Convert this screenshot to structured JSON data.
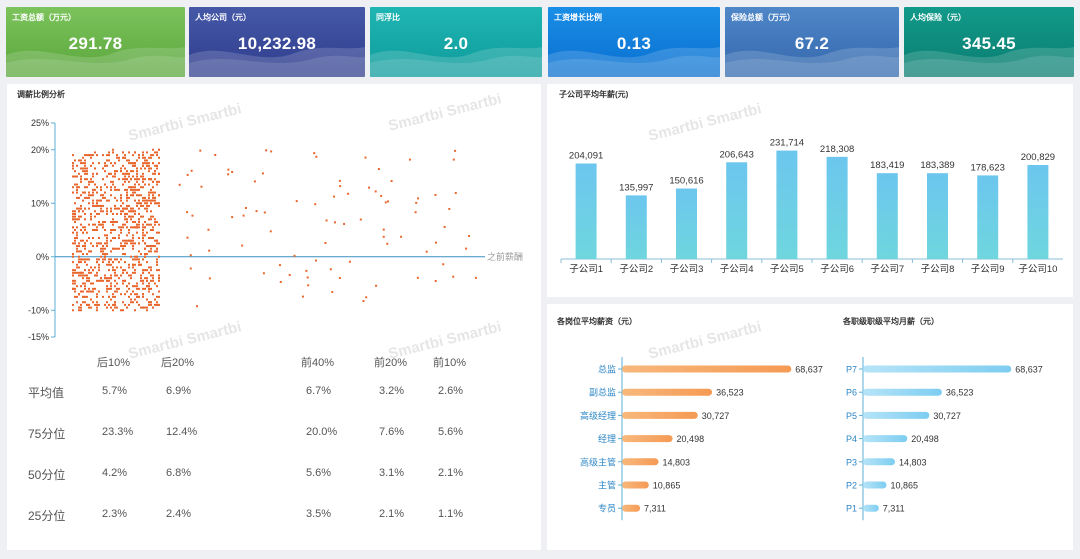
{
  "kpis": [
    {
      "label": "工资总额（万元）",
      "value": "291.78",
      "c1": "#7cc35c",
      "c2": "#5aa63c"
    },
    {
      "label": "人均公司（元）",
      "value": "10,232.98",
      "c1": "#4558a8",
      "c2": "#2f3d8c"
    },
    {
      "label": "同浮比",
      "value": "2.0",
      "c1": "#1fb6b3",
      "c2": "#0e9a9a"
    },
    {
      "label": "工资增长比例",
      "value": "0.13",
      "c1": "#1a8ee6",
      "c2": "#0a6fd0"
    },
    {
      "label": "保险总额（万元）",
      "value": "67.2",
      "c1": "#4f87c9",
      "c2": "#3468ac"
    },
    {
      "label": "人均保险（元）",
      "value": "345.45",
      "c1": "#129a8a",
      "c2": "#0a7d70"
    }
  ],
  "watermark": "Smartbi Smartbi",
  "scatter_panel": {
    "title": "调薪比例分析",
    "ref_line_label": "之前薪酬",
    "table": {
      "headers": [
        "后10%",
        "后20%",
        "前40%",
        "前20%",
        "前10%"
      ],
      "rows": [
        {
          "label": "平均值",
          "values": [
            "5.7%",
            "6.9%",
            "6.7%",
            "3.2%",
            "2.6%"
          ]
        },
        {
          "label": "75分位",
          "values": [
            "23.3%",
            "12.4%",
            "20.0%",
            "7.6%",
            "5.6%"
          ]
        },
        {
          "label": "50分位",
          "values": [
            "4.2%",
            "6.8%",
            "5.6%",
            "3.1%",
            "2.1%"
          ]
        },
        {
          "label": "25分位",
          "values": [
            "2.3%",
            "2.4%",
            "3.5%",
            "2.1%",
            "1.1%"
          ]
        }
      ]
    }
  },
  "chart_data": [
    {
      "type": "scatter",
      "title": "调薪比例分析",
      "ylim": [
        -15,
        25
      ],
      "yticks": [
        "25%",
        "20%",
        "10%",
        "0%",
        "-10%",
        "-15%"
      ],
      "ytick_values": [
        25,
        20,
        10,
        0,
        -10,
        -15
      ],
      "reference_line": {
        "y": 0,
        "label": "之前薪酬"
      },
      "color": "#e8672e"
    },
    {
      "type": "bar",
      "title": "子公司平均年薪(元)",
      "categories": [
        "子公司1",
        "子公司2",
        "子公司3",
        "子公司4",
        "子公司5",
        "子公司6",
        "子公司7",
        "子公司8",
        "子公司9",
        "子公司10"
      ],
      "values": [
        204091,
        135997,
        150616,
        206643,
        231714,
        218308,
        183419,
        183389,
        178623,
        200829
      ],
      "labels": [
        "204,091",
        "135,997",
        "150,616",
        "206,643",
        "231,714",
        "218,308",
        "183,419",
        "183,389",
        "178,623",
        "200,829"
      ],
      "ylim": [
        0,
        250000
      ]
    },
    {
      "type": "bar",
      "orientation": "horizontal",
      "title": "各岗位平均薪资（元）",
      "categories": [
        "总监",
        "副总监",
        "高级经理",
        "经理",
        "高级主管",
        "主管",
        "专员"
      ],
      "values": [
        68637,
        36523,
        30727,
        20498,
        14803,
        10865,
        7311
      ],
      "labels": [
        "68,637",
        "36,523",
        "30,727",
        "20,498",
        "14,803",
        "10,865",
        "7,311"
      ],
      "xlim": [
        0,
        75000
      ],
      "color": "#f7b77a"
    },
    {
      "type": "bar",
      "orientation": "horizontal",
      "title": "各职级职级平均月薪（元）",
      "categories": [
        "P7",
        "P6",
        "P5",
        "P4",
        "P3",
        "P2",
        "P1"
      ],
      "values": [
        68637,
        36523,
        30727,
        20498,
        14803,
        10865,
        7311
      ],
      "labels": [
        "68,637",
        "36,523",
        "30,727",
        "20,498",
        "14,803",
        "10,865",
        "7,311"
      ],
      "xlim": [
        0,
        75000
      ],
      "color": "#9fd8f4"
    }
  ]
}
